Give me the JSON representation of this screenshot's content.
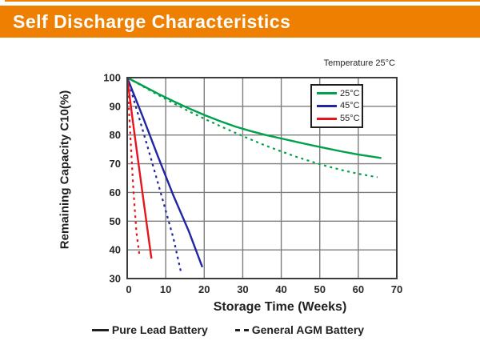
{
  "header": {
    "title": "Self Discharge Characteristics",
    "banner_color": "#EE7F01"
  },
  "chart_data": {
    "type": "line",
    "temperature_note": "Temperature 25°C",
    "xlabel": "Storage Time (Weeks)",
    "ylabel": "Remaining Capacity C10(%)",
    "xlim": [
      0,
      70
    ],
    "ylim": [
      30,
      100
    ],
    "xticks": [
      0,
      10,
      20,
      30,
      40,
      50,
      60,
      70
    ],
    "yticks": [
      100,
      90,
      80,
      70,
      60,
      50,
      40,
      30
    ],
    "grid": true,
    "grid_color": "#7d7d7d",
    "axis_border_color": "#3c3c3c",
    "legend": {
      "position": "top-right",
      "items": [
        {
          "label": "25°C",
          "color": "#00A14B"
        },
        {
          "label": "45°C",
          "color": "#1F25A3"
        },
        {
          "label": "55°C",
          "color": "#E9131C"
        }
      ]
    },
    "line_style_legend": [
      {
        "label": "Pure Lead Battery",
        "style": "solid"
      },
      {
        "label": "General AGM Battery",
        "style": "dashed"
      }
    ],
    "series": [
      {
        "name": "25°C Pure Lead Battery",
        "style": "solid",
        "color": "#00A14B",
        "points": [
          [
            0,
            100
          ],
          [
            4,
            97.2
          ],
          [
            8,
            94.4
          ],
          [
            12,
            91.8
          ],
          [
            16,
            89.3
          ],
          [
            20,
            87
          ],
          [
            24,
            84.9
          ],
          [
            28,
            83
          ],
          [
            32,
            81.4
          ],
          [
            36,
            80
          ],
          [
            40,
            78.8
          ],
          [
            44,
            77.6
          ],
          [
            48,
            76.4
          ],
          [
            52,
            75.3
          ],
          [
            56,
            74.2
          ],
          [
            60,
            73.2
          ],
          [
            66,
            72
          ]
        ]
      },
      {
        "name": "25°C General AGM Battery",
        "style": "dashed",
        "color": "#00A14B",
        "points": [
          [
            0,
            100
          ],
          [
            4,
            97
          ],
          [
            8,
            94
          ],
          [
            12,
            91.1
          ],
          [
            16,
            88.3
          ],
          [
            20,
            85.7
          ],
          [
            24,
            83.2
          ],
          [
            28,
            80.8
          ],
          [
            32,
            78.5
          ],
          [
            36,
            76.3
          ],
          [
            40,
            74.3
          ],
          [
            44,
            72.4
          ],
          [
            48,
            70.7
          ],
          [
            52,
            69.1
          ],
          [
            56,
            67.7
          ],
          [
            60,
            66.5
          ],
          [
            65,
            65.3
          ]
        ]
      },
      {
        "name": "45°C Pure Lead Battery",
        "style": "solid",
        "color": "#1F25A3",
        "points": [
          [
            0,
            100
          ],
          [
            4,
            86.5
          ],
          [
            8,
            72.5
          ],
          [
            12,
            58.9
          ],
          [
            16,
            46.5
          ],
          [
            19.5,
            34
          ]
        ]
      },
      {
        "name": "45°C General AGM Battery",
        "style": "dashed",
        "color": "#1F25A3",
        "points": [
          [
            0,
            100
          ],
          [
            3,
            86.5
          ],
          [
            6,
            72.6
          ],
          [
            9,
            58.5
          ],
          [
            12,
            44
          ],
          [
            14,
            32
          ]
        ]
      },
      {
        "name": "55°C Pure Lead Battery",
        "style": "solid",
        "color": "#E9131C",
        "points": [
          [
            0,
            100
          ],
          [
            1.5,
            84.5
          ],
          [
            3,
            69.5
          ],
          [
            4.5,
            54.5
          ],
          [
            6.3,
            37
          ]
        ]
      },
      {
        "name": "55°C General AGM Battery",
        "style": "dashed",
        "color": "#E9131C",
        "points": [
          [
            0,
            100
          ],
          [
            0.8,
            80
          ],
          [
            1.6,
            61
          ],
          [
            2.4,
            46
          ],
          [
            3.2,
            38
          ]
        ]
      }
    ]
  }
}
